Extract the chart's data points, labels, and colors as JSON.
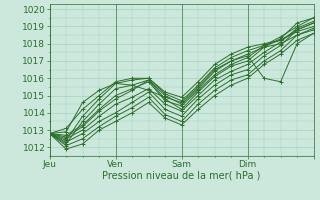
{
  "title": "",
  "xlabel": "Pression niveau de la mer( hPa )",
  "ylabel": "",
  "ylim": [
    1011.5,
    1020.3
  ],
  "xlim": [
    0,
    96
  ],
  "yticks": [
    1012,
    1013,
    1014,
    1015,
    1016,
    1017,
    1018,
    1019,
    1020
  ],
  "xtick_positions": [
    0,
    24,
    48,
    72,
    96
  ],
  "xtick_labels": [
    "Jeu",
    "Ven",
    "Sam",
    "Dim",
    ""
  ],
  "vlines": [
    0,
    24,
    48,
    72,
    96
  ],
  "bg_color": "#cce8dc",
  "grid_color": "#99ccb8",
  "line_color": "#2d6e2d",
  "linewidth": 0.7,
  "markersize": 2.2,
  "lines": [
    {
      "x": [
        0,
        6,
        12,
        18,
        24,
        30,
        36,
        42,
        48,
        54,
        60,
        66,
        72,
        78,
        84,
        90,
        96
      ],
      "y": [
        1012.8,
        1012.6,
        1013.2,
        1014.1,
        1014.8,
        1015.3,
        1015.9,
        1014.8,
        1014.2,
        1015.2,
        1016.1,
        1016.7,
        1017.0,
        1017.8,
        1018.3,
        1019.2,
        1019.5
      ]
    },
    {
      "x": [
        0,
        6,
        12,
        18,
        24,
        30,
        36,
        42,
        48,
        54,
        60,
        66,
        72,
        78,
        84,
        90,
        96
      ],
      "y": [
        1012.8,
        1012.3,
        1012.8,
        1013.5,
        1014.0,
        1014.6,
        1015.2,
        1014.2,
        1013.8,
        1014.8,
        1015.6,
        1016.2,
        1016.5,
        1017.3,
        1017.9,
        1018.8,
        1019.2
      ]
    },
    {
      "x": [
        0,
        6,
        12,
        18,
        24,
        30,
        36,
        42,
        48,
        54,
        60,
        66,
        72,
        78,
        84,
        90,
        96
      ],
      "y": [
        1012.8,
        1012.1,
        1012.5,
        1013.2,
        1013.8,
        1014.3,
        1014.9,
        1013.9,
        1013.5,
        1014.5,
        1015.3,
        1015.9,
        1016.2,
        1017.0,
        1017.6,
        1018.5,
        1018.9
      ]
    },
    {
      "x": [
        0,
        6,
        12,
        18,
        24,
        30,
        36,
        42,
        48,
        54,
        60,
        66,
        72,
        78,
        84,
        90,
        96
      ],
      "y": [
        1012.8,
        1011.9,
        1012.2,
        1013.0,
        1013.5,
        1014.0,
        1014.6,
        1013.7,
        1013.3,
        1014.2,
        1015.0,
        1015.6,
        1016.0,
        1016.8,
        1017.4,
        1018.2,
        1018.6
      ]
    },
    {
      "x": [
        0,
        6,
        12,
        18,
        24,
        30,
        36,
        42,
        48,
        54,
        60,
        66,
        72,
        78,
        84,
        90,
        96
      ],
      "y": [
        1012.8,
        1012.2,
        1013.5,
        1014.5,
        1015.4,
        1015.6,
        1015.9,
        1015.0,
        1014.5,
        1015.4,
        1016.4,
        1017.0,
        1017.4,
        1017.8,
        1018.0,
        1018.5,
        1018.8
      ]
    },
    {
      "x": [
        0,
        6,
        12,
        18,
        24,
        30,
        36,
        42,
        48,
        54,
        60,
        66,
        72,
        78,
        84,
        90,
        96
      ],
      "y": [
        1012.8,
        1012.4,
        1013.8,
        1014.8,
        1015.7,
        1015.9,
        1016.0,
        1015.1,
        1014.7,
        1015.6,
        1016.6,
        1017.2,
        1017.6,
        1017.9,
        1018.2,
        1018.7,
        1019.0
      ]
    },
    {
      "x": [
        0,
        6,
        12,
        18,
        24,
        30,
        36,
        42,
        48,
        54,
        60,
        66,
        72,
        78,
        84,
        90,
        96
      ],
      "y": [
        1012.8,
        1013.1,
        1014.2,
        1015.0,
        1015.8,
        1016.0,
        1016.0,
        1015.2,
        1014.9,
        1015.8,
        1016.8,
        1017.4,
        1017.8,
        1018.0,
        1018.2,
        1018.8,
        1019.2
      ]
    },
    {
      "x": [
        0,
        6,
        12,
        18,
        24,
        30,
        36,
        42,
        48,
        54,
        60,
        66,
        72,
        78,
        84,
        90,
        96
      ],
      "y": [
        1012.8,
        1012.9,
        1014.6,
        1015.3,
        1015.7,
        1015.6,
        1015.3,
        1014.9,
        1014.6,
        1015.5,
        1016.5,
        1017.0,
        1017.3,
        1016.0,
        1015.8,
        1018.0,
        1018.6
      ]
    },
    {
      "x": [
        0,
        6,
        12,
        18,
        24,
        30,
        36,
        42,
        48,
        54,
        60,
        66,
        72,
        78,
        84,
        90,
        96
      ],
      "y": [
        1012.8,
        1012.5,
        1013.0,
        1013.8,
        1014.5,
        1014.9,
        1015.4,
        1014.5,
        1014.1,
        1015.0,
        1015.9,
        1016.4,
        1016.8,
        1017.5,
        1018.1,
        1018.9,
        1019.3
      ]
    },
    {
      "x": [
        0,
        6,
        12,
        18,
        24,
        30,
        36,
        42,
        48,
        54,
        60,
        66,
        72,
        78,
        84,
        90,
        96
      ],
      "y": [
        1012.8,
        1012.7,
        1013.3,
        1014.2,
        1015.0,
        1015.4,
        1015.8,
        1014.7,
        1014.4,
        1015.3,
        1016.2,
        1016.8,
        1017.2,
        1017.9,
        1018.4,
        1019.0,
        1019.5
      ]
    }
  ]
}
